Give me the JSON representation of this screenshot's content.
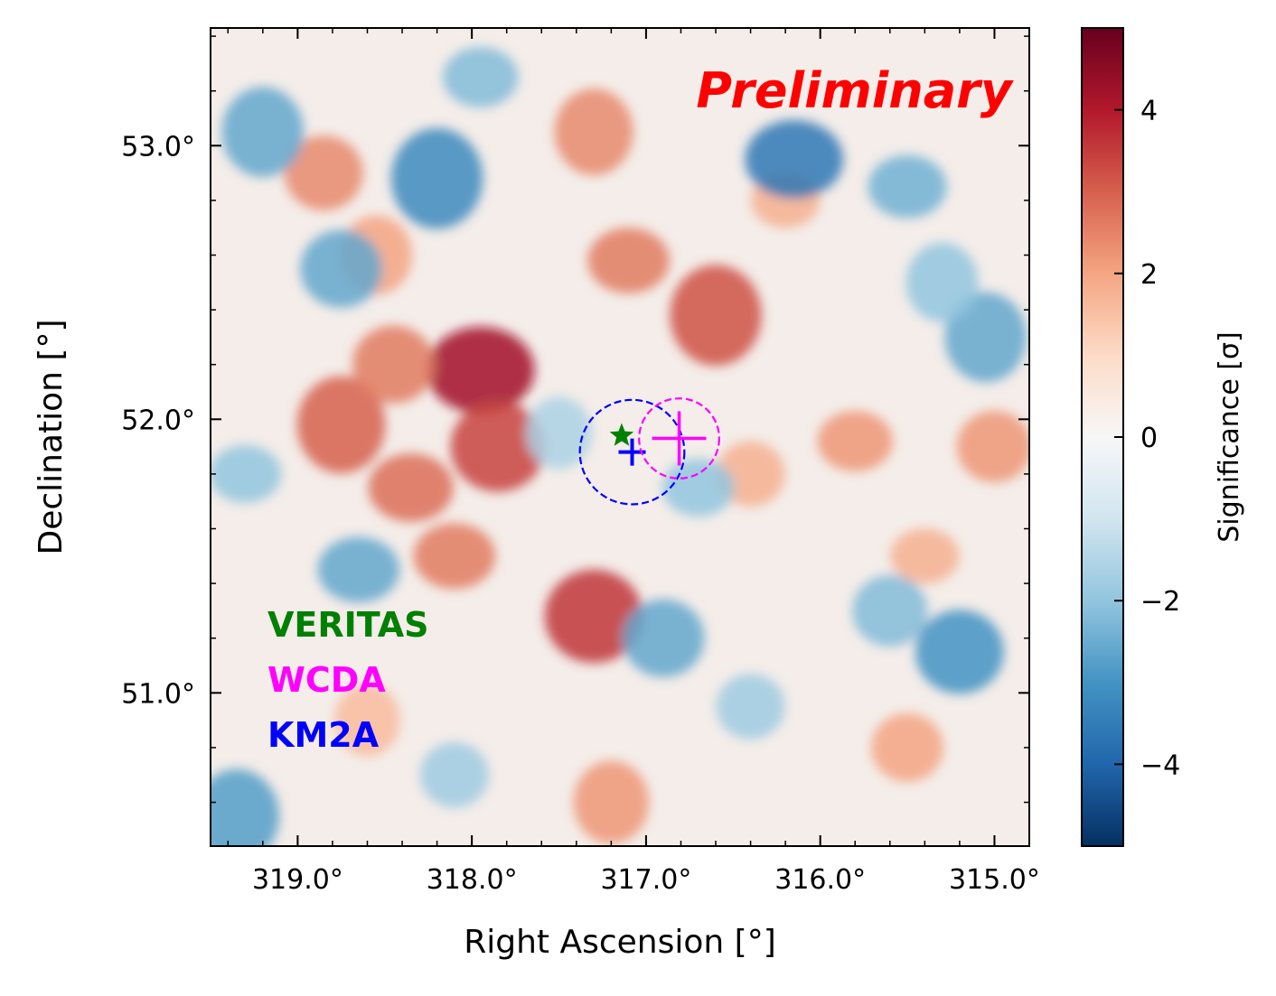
{
  "chart_data": {
    "type": "heatmap",
    "title": "",
    "watermark": "Preliminary",
    "xlabel": "Right Ascension [$^\\circ$]",
    "xlabel_text": "Right Ascension [°]",
    "ylabel_text": "Declination [°]",
    "x_ticks": [
      319.0,
      318.0,
      317.0,
      316.0,
      315.0
    ],
    "x_tick_labels": [
      "319.0°",
      "318.0°",
      "317.0°",
      "316.0°",
      "315.0°"
    ],
    "y_ticks": [
      53.0,
      52.0,
      51.0
    ],
    "y_tick_labels": [
      "53.0°",
      "52.0°",
      "51.0°"
    ],
    "xlim": [
      319.5,
      314.8
    ],
    "ylim": [
      50.44,
      53.43
    ],
    "colorbar": {
      "label": "Significance [σ]",
      "range": [
        -5,
        5
      ],
      "ticks": [
        4,
        2,
        0,
        -2,
        -4
      ],
      "tick_labels": [
        "4",
        "2",
        "0",
        "−2",
        "−4"
      ],
      "colormap": "RdBu_r"
    },
    "markers": [
      {
        "name": "VERITAS",
        "type": "star",
        "ra": 317.14,
        "dec": 51.94,
        "color": "#008000"
      },
      {
        "name": "KM2A",
        "type": "plus",
        "ra": 317.08,
        "dec": 51.88,
        "radius_deg": 0.3,
        "color": "#0000ff"
      },
      {
        "name": "WCDA",
        "type": "plus",
        "ra": 316.81,
        "dec": 51.93,
        "radius_deg": 0.23,
        "color": "#ff00ff"
      }
    ],
    "legend": [
      {
        "label": "VERITAS",
        "color": "#008000"
      },
      {
        "label": "WCDA",
        "color": "#ff00ff"
      },
      {
        "label": "KM2A",
        "color": "#0000ff"
      }
    ],
    "hotspots": [
      {
        "ra": 317.95,
        "dec": 52.18,
        "sig": 4.2
      },
      {
        "ra": 317.85,
        "dec": 51.9,
        "sig": 3.4
      },
      {
        "ra": 318.75,
        "dec": 51.98,
        "sig": 3.0
      },
      {
        "ra": 318.35,
        "dec": 51.75,
        "sig": 2.8
      },
      {
        "ra": 317.3,
        "dec": 51.28,
        "sig": 3.6
      },
      {
        "ra": 316.6,
        "dec": 52.38,
        "sig": 3.2
      },
      {
        "ra": 317.1,
        "dec": 52.58,
        "sig": 2.6
      },
      {
        "ra": 318.85,
        "dec": 52.9,
        "sig": 2.4
      },
      {
        "ra": 318.55,
        "dec": 52.6,
        "sig": 2.0
      },
      {
        "ra": 315.8,
        "dec": 51.92,
        "sig": 2.2
      },
      {
        "ra": 315.0,
        "dec": 51.9,
        "sig": 2.2
      },
      {
        "ra": 317.3,
        "dec": 53.05,
        "sig": 2.4
      },
      {
        "ra": 318.1,
        "dec": 51.5,
        "sig": 2.6
      },
      {
        "ra": 316.4,
        "dec": 51.8,
        "sig": 1.8
      },
      {
        "ra": 317.2,
        "dec": 50.6,
        "sig": 2.2
      },
      {
        "ra": 315.4,
        "dec": 51.5,
        "sig": 1.8
      },
      {
        "ra": 315.5,
        "dec": 50.8,
        "sig": 2.0
      },
      {
        "ra": 318.6,
        "dec": 50.9,
        "sig": 1.6
      },
      {
        "ra": 316.2,
        "dec": 52.8,
        "sig": 1.8
      },
      {
        "ra": 318.45,
        "dec": 52.2,
        "sig": 2.6
      },
      {
        "ra": 318.2,
        "dec": 52.88,
        "sig": -3.2
      },
      {
        "ra": 316.15,
        "dec": 52.95,
        "sig": -3.6
      },
      {
        "ra": 318.75,
        "dec": 52.55,
        "sig": -2.6
      },
      {
        "ra": 319.2,
        "dec": 53.05,
        "sig": -2.6
      },
      {
        "ra": 315.5,
        "dec": 52.85,
        "sig": -2.4
      },
      {
        "ra": 315.2,
        "dec": 51.15,
        "sig": -3.0
      },
      {
        "ra": 315.05,
        "dec": 52.3,
        "sig": -2.6
      },
      {
        "ra": 318.65,
        "dec": 51.45,
        "sig": -2.6
      },
      {
        "ra": 316.9,
        "dec": 51.2,
        "sig": -2.6
      },
      {
        "ra": 319.35,
        "dec": 50.55,
        "sig": -2.8
      },
      {
        "ra": 316.7,
        "dec": 51.75,
        "sig": -2.0
      },
      {
        "ra": 315.6,
        "dec": 51.3,
        "sig": -2.2
      },
      {
        "ra": 315.3,
        "dec": 52.5,
        "sig": -2.0
      },
      {
        "ra": 317.95,
        "dec": 53.25,
        "sig": -2.2
      },
      {
        "ra": 316.4,
        "dec": 50.95,
        "sig": -1.8
      },
      {
        "ra": 317.5,
        "dec": 51.95,
        "sig": -1.6
      },
      {
        "ra": 319.3,
        "dec": 51.8,
        "sig": -2.0
      },
      {
        "ra": 318.1,
        "dec": 50.7,
        "sig": -1.8
      }
    ]
  }
}
